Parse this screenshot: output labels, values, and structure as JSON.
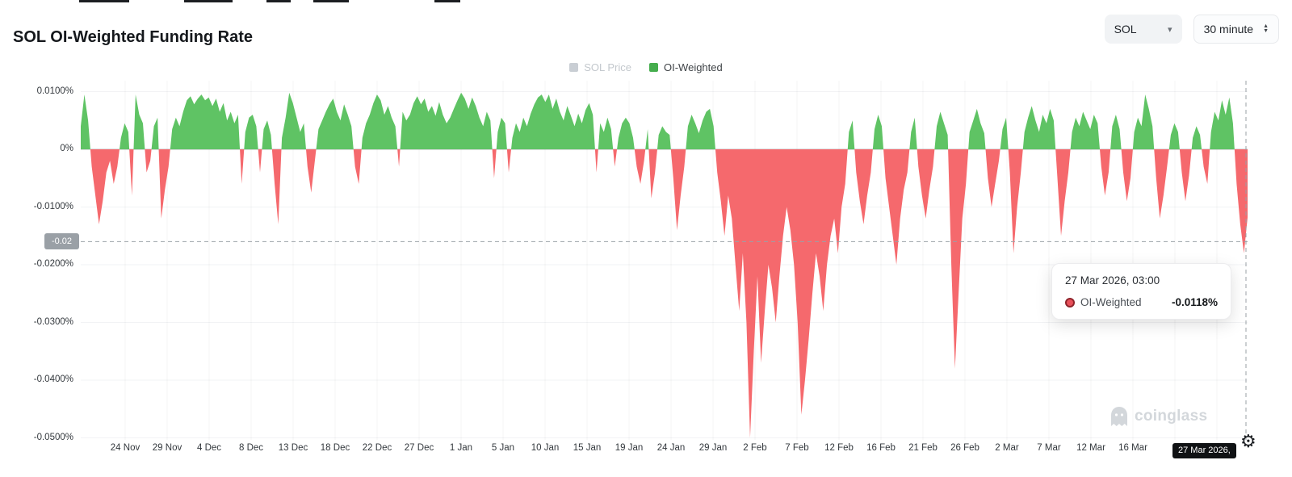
{
  "header": {
    "title": "SOL OI-Weighted Funding Rate",
    "symbol_select": {
      "value": "SOL"
    },
    "interval_select": {
      "value": "30 minute"
    }
  },
  "legend": {
    "items": [
      {
        "label": "SOL Price",
        "color": "#c9ced4",
        "active": false
      },
      {
        "label": "OI-Weighted",
        "color": "#45ad4d",
        "active": true
      }
    ]
  },
  "tooltip": {
    "title": "27 Mar 2026, 03:00",
    "series_label": "OI-Weighted",
    "value": "-0.0118%",
    "marker_color": "#e8505a"
  },
  "crosshair": {
    "y_label": "-0.02",
    "x_label": "27 Mar 2026,"
  },
  "watermark": {
    "text": "coinglass"
  },
  "chart_data": {
    "type": "area",
    "title": "SOL OI-Weighted Funding Rate",
    "symbol": "SOL",
    "interval": "30 minute",
    "unit": "%",
    "ylim": [
      -0.05,
      0.0105
    ],
    "grid": "faint",
    "legend_position": "top",
    "colors": {
      "positive": "#5fc364",
      "negative": "#f5696d",
      "zero_line": "#b6babe"
    },
    "y_ticks": {
      "labels": [
        "0.0100%",
        "0%",
        "-0.0100%",
        "-0.0200%",
        "-0.0300%",
        "-0.0400%",
        "-0.0500%"
      ],
      "values": [
        0.01,
        0,
        -0.01,
        -0.02,
        -0.03,
        -0.04,
        -0.05
      ]
    },
    "x_ticks": [
      "24 Nov",
      "29 Nov",
      "4 Dec",
      "8 Dec",
      "13 Dec",
      "18 Dec",
      "22 Dec",
      "27 Dec",
      "1 Jan",
      "5 Jan",
      "10 Jan",
      "15 Jan",
      "19 Jan",
      "24 Jan",
      "29 Jan",
      "2 Feb",
      "7 Feb",
      "12 Feb",
      "16 Feb",
      "21 Feb",
      "26 Feb",
      "2 Mar",
      "7 Mar",
      "12 Mar",
      "16 Mar"
    ],
    "highlighted_point": {
      "time": "27 Mar 2026, 03:00",
      "series": "OI-Weighted",
      "value_pct": -0.0118
    },
    "series": [
      {
        "name": "OI-Weighted",
        "visible": true,
        "values_pct": [
          0.004,
          0.0095,
          0.005,
          -0.003,
          -0.008,
          -0.013,
          -0.009,
          -0.004,
          -0.002,
          -0.006,
          -0.003,
          0.002,
          0.0045,
          0.003,
          -0.008,
          0.0095,
          0.006,
          0.0045,
          -0.004,
          -0.002,
          0.004,
          0.0055,
          -0.012,
          -0.007,
          -0.003,
          0.0035,
          0.0055,
          0.004,
          0.0065,
          0.0085,
          0.0092,
          0.0078,
          0.0088,
          0.0095,
          0.0085,
          0.009,
          0.0075,
          0.0088,
          0.0065,
          0.008,
          0.005,
          0.0065,
          0.0045,
          0.006,
          -0.006,
          0.003,
          0.0055,
          0.006,
          0.004,
          -0.004,
          0.0035,
          0.005,
          0.0025,
          -0.006,
          -0.013,
          0.002,
          0.0055,
          0.0098,
          0.008,
          0.0055,
          0.003,
          0.0045,
          -0.003,
          -0.0075,
          -0.002,
          0.0035,
          0.005,
          0.0065,
          0.0078,
          0.0088,
          0.0065,
          0.005,
          0.0078,
          0.006,
          0.004,
          -0.003,
          -0.006,
          0.002,
          0.0045,
          0.006,
          0.008,
          0.0095,
          0.0085,
          0.006,
          0.0075,
          0.0055,
          0.004,
          -0.003,
          0.0065,
          0.005,
          0.006,
          0.008,
          0.0092,
          0.0078,
          0.0088,
          0.0065,
          0.0075,
          0.0058,
          0.0082,
          0.006,
          0.0045,
          0.0055,
          0.007,
          0.0085,
          0.0098,
          0.0088,
          0.007,
          0.009,
          0.0075,
          0.0055,
          0.004,
          0.0065,
          0.005,
          -0.005,
          0.003,
          0.0055,
          0.0045,
          -0.004,
          0.002,
          0.0045,
          0.003,
          0.0055,
          0.004,
          0.0062,
          0.0078,
          0.009,
          0.0095,
          0.0082,
          0.0095,
          0.007,
          0.0088,
          0.0065,
          0.005,
          0.0075,
          0.0058,
          0.004,
          0.0062,
          0.0045,
          0.0068,
          0.008,
          0.006,
          -0.004,
          0.0045,
          0.003,
          0.0055,
          0.0035,
          -0.003,
          0.002,
          0.0045,
          0.0055,
          0.0045,
          0.002,
          -0.003,
          -0.006,
          -0.002,
          0.0035,
          -0.0085,
          -0.004,
          0.0025,
          0.004,
          0.003,
          0.0025,
          -0.005,
          -0.014,
          -0.008,
          -0.003,
          0.004,
          0.006,
          0.0045,
          0.0028,
          0.005,
          0.0065,
          0.007,
          0.004,
          -0.004,
          -0.009,
          -0.015,
          -0.008,
          -0.012,
          -0.02,
          -0.028,
          -0.018,
          -0.03,
          -0.05,
          -0.035,
          -0.022,
          -0.037,
          -0.028,
          -0.02,
          -0.024,
          -0.03,
          -0.022,
          -0.015,
          -0.01,
          -0.014,
          -0.02,
          -0.03,
          -0.046,
          -0.04,
          -0.033,
          -0.025,
          -0.018,
          -0.022,
          -0.028,
          -0.02,
          -0.015,
          -0.012,
          -0.018,
          -0.01,
          -0.006,
          0.003,
          0.005,
          -0.004,
          -0.009,
          -0.013,
          -0.008,
          -0.004,
          0.0035,
          0.006,
          0.004,
          -0.005,
          -0.01,
          -0.015,
          -0.02,
          -0.012,
          -0.007,
          -0.004,
          0.003,
          0.0055,
          -0.003,
          -0.008,
          -0.012,
          -0.007,
          -0.003,
          0.004,
          0.0065,
          0.0045,
          0.0025,
          -0.02,
          -0.038,
          -0.025,
          -0.012,
          -0.006,
          0.003,
          0.005,
          0.007,
          0.0045,
          0.0028,
          -0.005,
          -0.01,
          -0.006,
          -0.002,
          0.0035,
          0.0055,
          -0.004,
          -0.018,
          -0.01,
          -0.004,
          0.003,
          0.0055,
          0.0075,
          0.005,
          0.003,
          0.006,
          0.0045,
          0.007,
          0.005,
          -0.005,
          -0.015,
          -0.009,
          -0.004,
          0.003,
          0.0055,
          0.004,
          0.0065,
          0.005,
          0.0035,
          0.006,
          0.0045,
          -0.003,
          -0.008,
          -0.004,
          0.004,
          0.006,
          0.0035,
          -0.004,
          -0.009,
          -0.005,
          0.003,
          0.0055,
          0.004,
          0.0095,
          0.007,
          0.004,
          -0.005,
          -0.012,
          -0.008,
          -0.003,
          0.0025,
          0.0045,
          0.003,
          -0.004,
          -0.009,
          -0.0045,
          0.002,
          0.004,
          0.0025,
          -0.003,
          -0.006,
          0.003,
          0.0065,
          0.005,
          0.0085,
          0.006,
          0.009,
          0.0045,
          -0.006,
          -0.013,
          -0.018,
          -0.0118
        ]
      },
      {
        "name": "SOL Price",
        "visible": false,
        "values_pct": []
      }
    ]
  }
}
